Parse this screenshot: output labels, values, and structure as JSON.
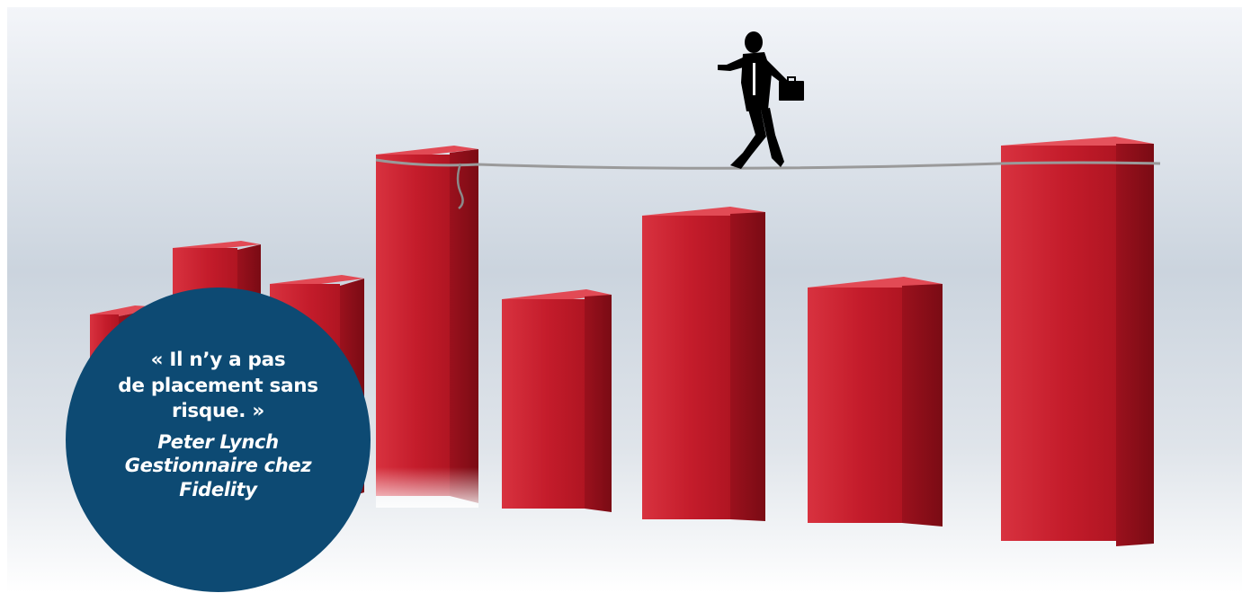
{
  "quote": {
    "lines": [
      "« Il n’y a pas",
      "de placement sans",
      "risque. »"
    ],
    "author_lines": [
      "Peter Lynch",
      "Gestionnaire chez",
      "Fidelity"
    ]
  },
  "colors": {
    "circle": "#0d4a73",
    "bar_front": "#cc1f2e",
    "bar_side": "#8e0f1a",
    "bar_top": "#e0404c",
    "background_top": "#f2f4f8",
    "background_mid": "#c6d0dc",
    "rope": "#9a9a9a",
    "silhouette": "#000000"
  },
  "icons": [
    "businessman-silhouette",
    "briefcase-icon",
    "tightrope",
    "bar-chart-illustration"
  ]
}
